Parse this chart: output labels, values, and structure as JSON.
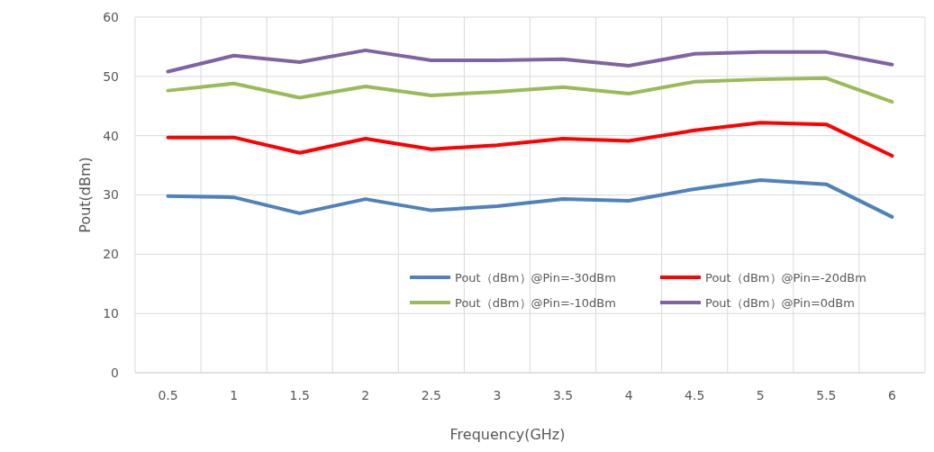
{
  "chart_data": {
    "type": "line",
    "xlabel": "Frequency(GHz)",
    "ylabel": "Pout(dBm)",
    "categories": [
      "0.5",
      "1",
      "1.5",
      "2",
      "2.5",
      "3",
      "3.5",
      "4",
      "4.5",
      "5",
      "5.5",
      "6"
    ],
    "series": [
      {
        "name": "Pout（dBm）@Pin=-30dBm",
        "color": "#4f81bd",
        "values": [
          29.8,
          29.6,
          26.9,
          29.3,
          27.4,
          28.1,
          29.3,
          29.0,
          31.0,
          32.5,
          31.8,
          26.3
        ]
      },
      {
        "name": "Pout（dBm）@Pin=-20dBm",
        "color": "#ff0000",
        "values": [
          39.7,
          39.7,
          37.1,
          39.5,
          37.7,
          38.4,
          39.5,
          39.1,
          40.9,
          42.2,
          41.9,
          36.6
        ]
      },
      {
        "name": "Pout（dBm）@Pin=-10dBm",
        "color": "#9bbb59",
        "values": [
          47.6,
          48.8,
          46.4,
          48.3,
          46.8,
          47.4,
          48.2,
          47.1,
          49.1,
          49.5,
          49.7,
          45.7
        ]
      },
      {
        "name": "Pout（dBm）@Pin=0dBm",
        "color": "#8064a2",
        "values": [
          50.8,
          53.5,
          52.4,
          54.4,
          52.7,
          52.7,
          52.9,
          51.8,
          53.8,
          54.1,
          54.1,
          52.0
        ]
      }
    ],
    "ylim": [
      0,
      60
    ],
    "yticks": [
      0,
      10,
      20,
      30,
      40,
      50,
      60
    ],
    "grid": true,
    "legend": "bottom right",
    "marker": "none",
    "line_style": "solid"
  }
}
